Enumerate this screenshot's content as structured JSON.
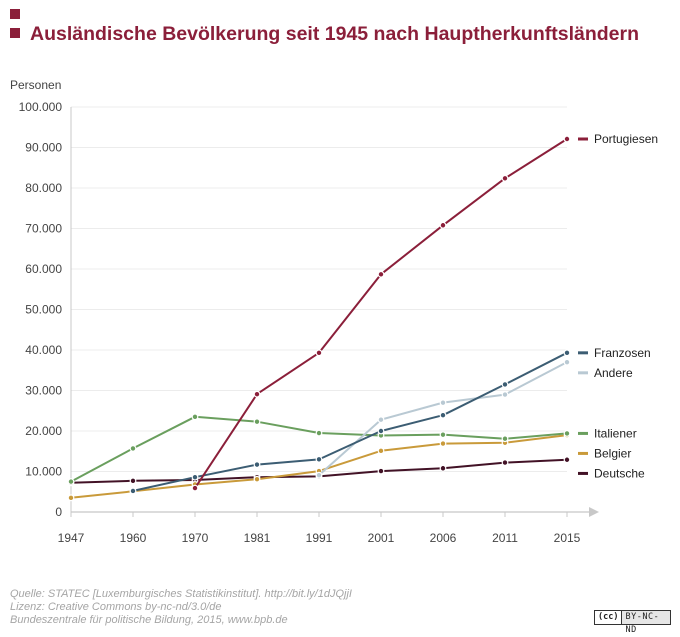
{
  "header": {
    "title": "Ausländische Bevölkerung seit 1945 nach Hauptherkunftsländern"
  },
  "colors": {
    "accent": "#8b1f3a"
  },
  "chart_data": {
    "type": "line",
    "title": "Ausländische Bevölkerung seit 1945 nach Hauptherkunftsländern",
    "ylabel": "Personen",
    "xlabel": "",
    "ylim": [
      0,
      100000
    ],
    "x": [
      "1947",
      "1960",
      "1970",
      "1981",
      "1991",
      "2001",
      "2006",
      "2011",
      "2015"
    ],
    "yticks": [
      "0",
      "10.000",
      "20.000",
      "30.000",
      "40.000",
      "50.000",
      "60.000",
      "70.000",
      "80.000",
      "90.000",
      "100.000"
    ],
    "grid": true,
    "legend": "right",
    "series": [
      {
        "name": "Portugiesen",
        "color": "#8b1f3a",
        "values": [
          null,
          null,
          5900,
          29100,
          39300,
          58700,
          70800,
          82400,
          92100
        ]
      },
      {
        "name": "Franzosen",
        "color": "#3c5d73",
        "values": [
          null,
          5200,
          8600,
          11700,
          13000,
          20000,
          23900,
          31500,
          39300
        ]
      },
      {
        "name": "Andere",
        "color": "#b9c9d3",
        "values": [
          null,
          null,
          null,
          null,
          9100,
          22800,
          27000,
          29000,
          37000
        ]
      },
      {
        "name": "Italiener",
        "color": "#6a9f5e",
        "values": [
          7500,
          15700,
          23500,
          22300,
          19500,
          18900,
          19100,
          18100,
          19400
        ]
      },
      {
        "name": "Belgier",
        "color": "#c99a3a",
        "values": [
          3500,
          5100,
          6800,
          8100,
          10100,
          15100,
          16900,
          17100,
          19000
        ]
      },
      {
        "name": "Deutsche",
        "color": "#421226",
        "values": [
          7200,
          7700,
          7900,
          8600,
          8800,
          10100,
          10800,
          12200,
          12900
        ]
      }
    ]
  },
  "footer": {
    "source": "Quelle: STATEC [Luxemburgisches Statistikinstitut]. http://bit.ly/1dJQjjI",
    "license": "Lizenz: Creative Commons by-nc-nd/3.0/de",
    "publisher": "Bundeszentrale für politische Bildung, 2015, www.bpb.de",
    "badge_cc": "(cc)",
    "badge_terms": "BY-NC-ND"
  }
}
